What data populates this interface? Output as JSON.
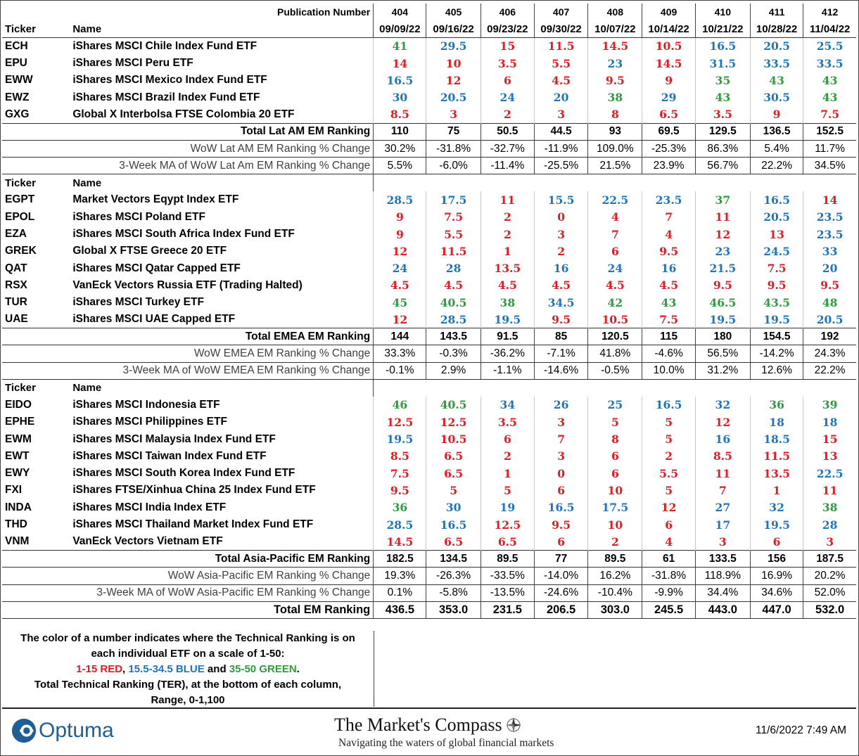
{
  "header": {
    "publication_label": "Publication Number",
    "publications": [
      "404",
      "405",
      "406",
      "407",
      "408",
      "409",
      "410",
      "411",
      "412"
    ],
    "ticker_label": "Ticker",
    "name_label": "Name",
    "dates": [
      "09/09/22",
      "09/16/22",
      "09/23/22",
      "09/30/22",
      "10/07/22",
      "10/14/22",
      "10/21/22",
      "10/28/22",
      "11/04/22"
    ]
  },
  "sections": [
    {
      "rows": [
        {
          "ticker": "ECH",
          "name": "iShares MSCI Chile Index Fund ETF",
          "values": [
            "41",
            "29.5",
            "15",
            "11.5",
            "14.5",
            "10.5",
            "16.5",
            "20.5",
            "25.5"
          ]
        },
        {
          "ticker": "EPU",
          "name": "iShares MSCI Peru ETF",
          "values": [
            "14",
            "10",
            "3.5",
            "5.5",
            "23",
            "14.5",
            "31.5",
            "33.5",
            "33.5"
          ]
        },
        {
          "ticker": "EWW",
          "name": "iShares MSCI Mexico Index Fund ETF",
          "values": [
            "16.5",
            "12",
            "6",
            "4.5",
            "9.5",
            "9",
            "35",
            "43",
            "43"
          ]
        },
        {
          "ticker": "EWZ",
          "name": "iShares MSCI Brazil Index Fund ETF",
          "values": [
            "30",
            "20.5",
            "24",
            "20",
            "38",
            "29",
            "43",
            "30.5",
            "43"
          ]
        },
        {
          "ticker": "GXG",
          "name": "Global X Interbolsa FTSE Colombia 20 ETF",
          "values": [
            "8.5",
            "3",
            "2",
            "3",
            "8",
            "6.5",
            "3.5",
            "9",
            "7.5"
          ]
        }
      ],
      "total": {
        "label": "Total Lat AM EM Ranking",
        "values": [
          "110",
          "75",
          "50.5",
          "44.5",
          "93",
          "69.5",
          "129.5",
          "136.5",
          "152.5"
        ]
      },
      "wow": {
        "label": "WoW Lat AM EM Ranking % Change",
        "values": [
          "30.2%",
          "-31.8%",
          "-32.7%",
          "-11.9%",
          "109.0%",
          "-25.3%",
          "86.3%",
          "5.4%",
          "11.7%"
        ]
      },
      "ma": {
        "label": "3-Week MA of WoW Lat Am EM Ranking % Change",
        "values": [
          "5.5%",
          "-6.0%",
          "-11.4%",
          "-25.5%",
          "21.5%",
          "23.9%",
          "56.7%",
          "22.2%",
          "34.5%"
        ]
      }
    },
    {
      "rows": [
        {
          "ticker": "EGPT",
          "name": "Market Vectors Eqypt Index ETF",
          "values": [
            "28.5",
            "17.5",
            "11",
            "15.5",
            "22.5",
            "23.5",
            "37",
            "16.5",
            "14"
          ]
        },
        {
          "ticker": "EPOL",
          "name": "iShares MSCI Poland ETF",
          "values": [
            "9",
            "7.5",
            "2",
            "0",
            "4",
            "7",
            "11",
            "20.5",
            "23.5"
          ]
        },
        {
          "ticker": "EZA",
          "name": "iShares MSCI South Africa Index Fund ETF",
          "values": [
            "9",
            "5.5",
            "2",
            "3",
            "7",
            "4",
            "12",
            "13",
            "23.5"
          ]
        },
        {
          "ticker": "GREK",
          "name": "Global X FTSE Greece 20 ETF",
          "values": [
            "12",
            "11.5",
            "1",
            "2",
            "6",
            "9.5",
            "23",
            "24.5",
            "33"
          ]
        },
        {
          "ticker": "QAT",
          "name": "iShares MSCI Qatar Capped ETF",
          "values": [
            "24",
            "28",
            "13.5",
            "16",
            "24",
            "16",
            "21.5",
            "7.5",
            "20"
          ]
        },
        {
          "ticker": "RSX",
          "name": "VanEck Vectors Russia ETF (Trading Halted)",
          "values": [
            "4.5",
            "4.5",
            "4.5",
            "4.5",
            "4.5",
            "4.5",
            "9.5",
            "9.5",
            "9.5"
          ]
        },
        {
          "ticker": "TUR",
          "name": "iShares MSCI Turkey ETF",
          "values": [
            "45",
            "40.5",
            "38",
            "34.5",
            "42",
            "43",
            "46.5",
            "43.5",
            "48"
          ]
        },
        {
          "ticker": "UAE",
          "name": "iShares MSCI UAE Capped ETF",
          "values": [
            "12",
            "28.5",
            "19.5",
            "9.5",
            "10.5",
            "7.5",
            "19.5",
            "19.5",
            "20.5"
          ]
        }
      ],
      "total": {
        "label": "Total EMEA EM Ranking",
        "values": [
          "144",
          "143.5",
          "91.5",
          "85",
          "120.5",
          "115",
          "180",
          "154.5",
          "192"
        ]
      },
      "wow": {
        "label": "WoW EMEA EM Ranking % Change",
        "values": [
          "33.3%",
          "-0.3%",
          "-36.2%",
          "-7.1%",
          "41.8%",
          "-4.6%",
          "56.5%",
          "-14.2%",
          "24.3%"
        ]
      },
      "ma": {
        "label": "3-Week MA of WoW EMEA EM Ranking % Change",
        "values": [
          "-0.1%",
          "2.9%",
          "-1.1%",
          "-14.6%",
          "-0.5%",
          "10.0%",
          "31.2%",
          "12.6%",
          "22.2%"
        ]
      }
    },
    {
      "rows": [
        {
          "ticker": "EIDO",
          "name": "iShares MSCI Indonesia ETF",
          "values": [
            "46",
            "40.5",
            "34",
            "26",
            "25",
            "16.5",
            "32",
            "36",
            "39"
          ]
        },
        {
          "ticker": "EPHE",
          "name": "iShares MSCI Philippines ETF",
          "values": [
            "12.5",
            "12.5",
            "3.5",
            "3",
            "5",
            "5",
            "12",
            "18",
            "18"
          ]
        },
        {
          "ticker": "EWM",
          "name": "iShares MSCI Malaysia Index Fund ETF",
          "values": [
            "19.5",
            "10.5",
            "6",
            "7",
            "8",
            "5",
            "16",
            "18.5",
            "15"
          ]
        },
        {
          "ticker": "EWT",
          "name": "iShares MSCI Taiwan Index Fund ETF",
          "values": [
            "8.5",
            "6.5",
            "2",
            "3",
            "6",
            "2",
            "8.5",
            "11.5",
            "13"
          ]
        },
        {
          "ticker": "EWY",
          "name": "iShares MSCI South Korea Index Fund ETF",
          "values": [
            "7.5",
            "6.5",
            "1",
            "0",
            "6",
            "5.5",
            "11",
            "13.5",
            "22.5"
          ]
        },
        {
          "ticker": "FXI",
          "name": "iShares FTSE/Xinhua China 25 Index Fund ETF",
          "values": [
            "9.5",
            "5",
            "5",
            "6",
            "10",
            "5",
            "7",
            "1",
            "11"
          ]
        },
        {
          "ticker": "INDA",
          "name": "iShares MSCI India Index ETF",
          "values": [
            "36",
            "30",
            "19",
            "16.5",
            "17.5",
            "12",
            "27",
            "32",
            "38"
          ]
        },
        {
          "ticker": "THD",
          "name": "iShares MSCI Thailand Market Index Fund ETF",
          "values": [
            "28.5",
            "16.5",
            "12.5",
            "9.5",
            "10",
            "6",
            "17",
            "19.5",
            "28"
          ]
        },
        {
          "ticker": "VNM",
          "name": "VanEck Vectors Vietnam ETF",
          "values": [
            "14.5",
            "6.5",
            "6.5",
            "6",
            "2",
            "4",
            "3",
            "6",
            "3"
          ]
        }
      ],
      "total": {
        "label": "Total Asia-Pacific EM Ranking",
        "values": [
          "182.5",
          "134.5",
          "89.5",
          "77",
          "89.5",
          "61",
          "133.5",
          "156",
          "187.5"
        ]
      },
      "wow": {
        "label": "WoW Asia-Pacific EM Ranking % Change",
        "values": [
          "19.3%",
          "-26.3%",
          "-33.5%",
          "-14.0%",
          "16.2%",
          "-31.8%",
          "118.9%",
          "16.9%",
          "20.2%"
        ]
      },
      "ma": {
        "label": "3-Week MA of WoW Asia-Pacific EM Ranking % Change",
        "values": [
          "0.1%",
          "-5.8%",
          "-13.5%",
          "-24.6%",
          "-10.4%",
          "-9.9%",
          "34.4%",
          "34.6%",
          "52.0%"
        ]
      }
    }
  ],
  "grand_total": {
    "label": "Total EM Ranking",
    "values": [
      "436.5",
      "353.0",
      "231.5",
      "206.5",
      "303.0",
      "245.5",
      "443.0",
      "447.0",
      "532.0"
    ]
  },
  "legend": {
    "line1": "The color of a number indicates where the Technical Ranking is on",
    "line2": "each individual ETF on a scale of 1-50:",
    "red_range": "1-15 RED",
    "sep1": ", ",
    "blue_range": "15.5-34.5 BLUE",
    "sep2": " and ",
    "green_range": "35-50 GREEN",
    "end": ".",
    "line4": "Total Technical Ranking (TER),  at the bottom of each column,",
    "line5": "Range, 0-1,100"
  },
  "footer": {
    "optuma_logo": "Optuma",
    "compass_title": "The Market's Compass",
    "compass_subtitle": "Navigating the waters of global financial markets",
    "timestamp": "11/6/2022 7:49 AM"
  },
  "colors": {
    "red": "#e21b22",
    "blue": "#1f74be",
    "green": "#2f9a3e",
    "optuma_blue": "#1f5f96"
  },
  "icons": {
    "optuma": "optuma-logo-icon",
    "compass": "compass-rose-icon"
  }
}
